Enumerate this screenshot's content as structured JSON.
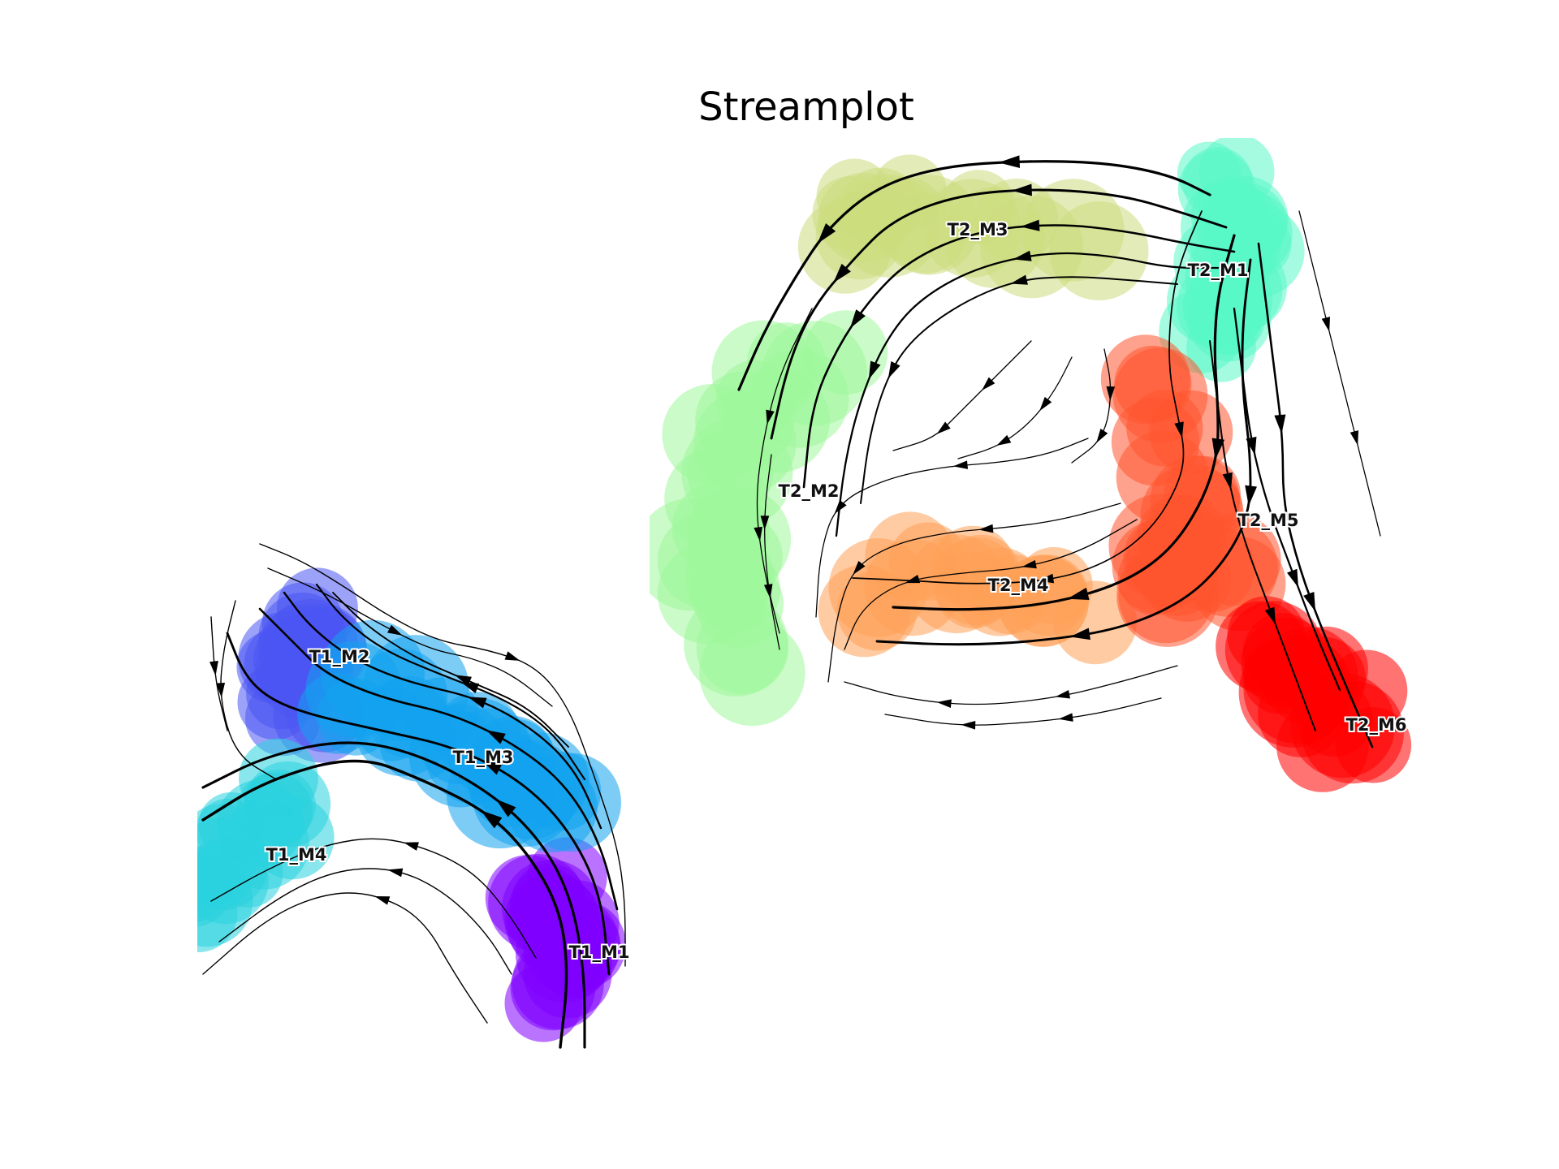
{
  "chart_data": {
    "type": "scatter",
    "title": "Streamplot",
    "xlabel": "",
    "ylabel": "",
    "axes_visible": false,
    "grid": false,
    "legend": "none",
    "marker_alpha": 0.55,
    "stream_color": "#000000",
    "groups": [
      {
        "name": "T1",
        "clusters": [
          {
            "label": "T1_M1",
            "color": "#7f00ff",
            "x": 0.72,
            "y": 0.12
          },
          {
            "label": "T1_M2",
            "color": "#4a56f2",
            "x": 0.28,
            "y": 0.85
          },
          {
            "label": "T1_M3",
            "color": "#13a2ee",
            "x": 0.55,
            "y": 0.57
          },
          {
            "label": "T1_M4",
            "color": "#29d2de",
            "x": 0.2,
            "y": 0.37
          }
        ]
      },
      {
        "name": "T2",
        "clusters": [
          {
            "label": "T2_M1",
            "color": "#5af7c6",
            "x": 0.78,
            "y": 0.85
          },
          {
            "label": "T2_M2",
            "color": "#9ef79b",
            "x": 0.18,
            "y": 0.45
          },
          {
            "label": "T2_M3",
            "color": "#ccdd7d",
            "x": 0.42,
            "y": 0.9
          },
          {
            "label": "T2_M4",
            "color": "#ffa057",
            "x": 0.5,
            "y": 0.4
          },
          {
            "label": "T2_M5",
            "color": "#ff5530",
            "x": 0.82,
            "y": 0.42
          },
          {
            "label": "T2_M6",
            "color": "#ff0000",
            "x": 0.95,
            "y": 0.15
          }
        ]
      }
    ]
  }
}
